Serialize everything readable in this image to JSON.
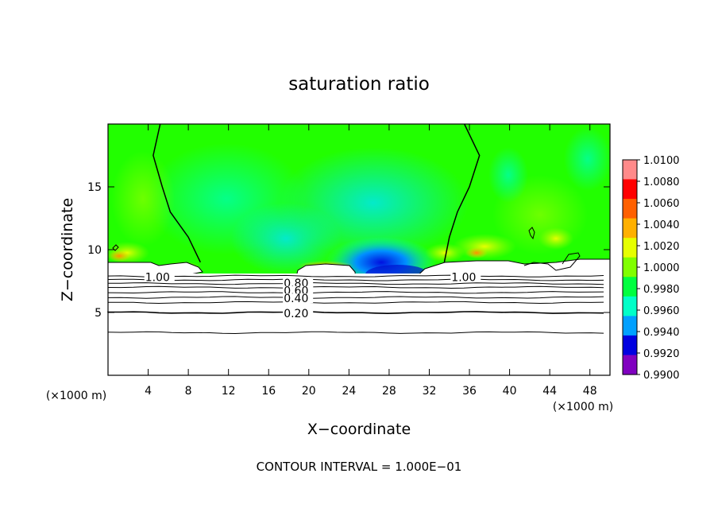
{
  "chart_data": {
    "type": "heatmap",
    "title": "saturation ratio",
    "xlabel": "X−coordinate",
    "ylabel": "Z−coordinate",
    "x_unit": "(×1000 m)",
    "y_unit": "(×1000 m)",
    "footer": "CONTOUR INTERVAL = 1.000E−01",
    "xlim": [
      0,
      50
    ],
    "ylim": [
      0,
      20
    ],
    "x_ticks": [
      "4",
      "8",
      "12",
      "16",
      "20",
      "24",
      "28",
      "32",
      "36",
      "40",
      "44",
      "48"
    ],
    "y_ticks": [
      "5",
      "10",
      "15"
    ],
    "colorbar_labels": [
      "1.0100",
      "1.0080",
      "1.0060",
      "1.0040",
      "1.0020",
      "1.0000",
      "0.9980",
      "0.9960",
      "0.9940",
      "0.9920",
      "0.9900"
    ],
    "colorbar_colors": [
      "#ff8a8a",
      "#ff0000",
      "#ff6000",
      "#ffb000",
      "#e6ff00",
      "#80ff00",
      "#00ff40",
      "#00ffc8",
      "#00a0ff",
      "#0000e0",
      "#8000c0"
    ],
    "contour_labels": [
      {
        "text": "1.00",
        "x": 3.7,
        "z": 7.7
      },
      {
        "text": "1.00",
        "x": 34.2,
        "z": 7.7
      },
      {
        "text": "0.80",
        "x": 17.5,
        "z": 7.2
      },
      {
        "text": "0.60",
        "x": 17.5,
        "z": 6.6
      },
      {
        "text": "0.40",
        "x": 17.5,
        "z": 6.0
      },
      {
        "text": "0.20",
        "x": 17.5,
        "z": 4.8
      }
    ],
    "contour_levels_z": [
      3.4,
      5.0,
      5.8,
      6.2,
      6.6,
      7.0,
      7.3,
      7.6,
      7.9
    ],
    "cloud_boundary_x": [
      {
        "z": 20.0,
        "x": 5.2
      },
      {
        "z": 17.5,
        "x": 4.5
      },
      {
        "z": 15.0,
        "x": 5.4
      },
      {
        "z": 13.0,
        "x": 6.2
      },
      {
        "z": 11.0,
        "x": 8.0
      },
      {
        "z": 9.0,
        "x": 9.2
      }
    ],
    "cloud_boundary_x_right": [
      {
        "z": 20.0,
        "x": 35.5
      },
      {
        "z": 17.5,
        "x": 37.0
      },
      {
        "z": 15.0,
        "x": 36.0
      },
      {
        "z": 13.0,
        "x": 34.8
      },
      {
        "z": 11.0,
        "x": 34.0
      },
      {
        "z": 9.0,
        "x": 33.5
      }
    ]
  }
}
